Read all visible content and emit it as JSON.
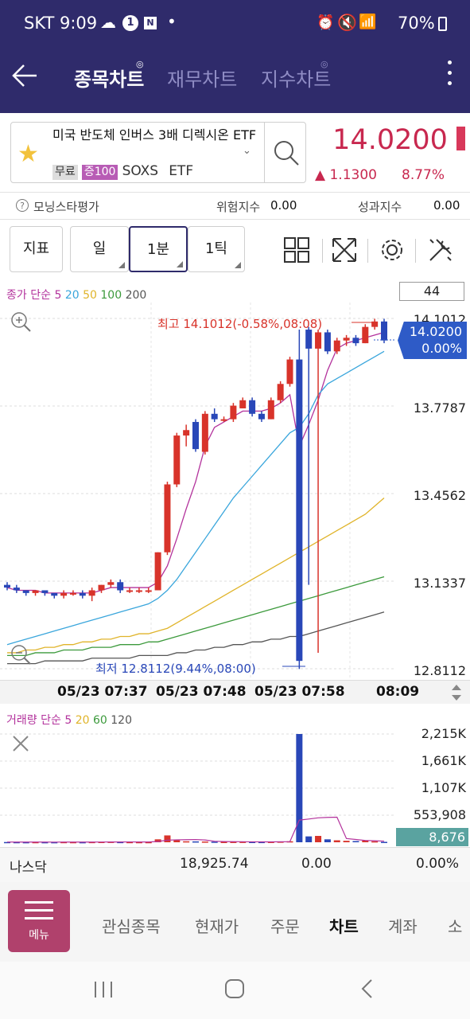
{
  "status": {
    "carrier_time": "SKT 9:09",
    "battery": "70%"
  },
  "tabs": [
    {
      "label": "종목차트"
    },
    {
      "label": "재무차트"
    },
    {
      "label": "지수차트"
    }
  ],
  "stock": {
    "name": "미국 반도체 인버스 3배 디렉시온 ETF",
    "tag_free": "무료",
    "tag_margin": "증100",
    "ticker": "SOXS",
    "type": "ETF",
    "price": "14.0200",
    "change": "▲ 1.1300",
    "change_pct": "8.77%"
  },
  "info_row": {
    "morningstar": "모닝스타평가",
    "risk_label": "위험지수",
    "risk_value": "0.00",
    "perf_label": "성과지수",
    "perf_value": "0.00"
  },
  "toolbar": {
    "indicator": "지표",
    "day": "일",
    "min1": "1분",
    "tick1": "1틱",
    "count": "44"
  },
  "legend": {
    "price_prefix": "종가 단순",
    "ma": [
      "5",
      "20",
      "50",
      "100",
      "200"
    ],
    "volume_prefix": "거래량 단순",
    "vol_ma": [
      "5",
      "20",
      "60",
      "120"
    ]
  },
  "colors": {
    "up": "#d8332a",
    "down": "#2947b8",
    "brand": "#2f2b6b",
    "price": "#c8284f",
    "ma5": "#b3329c",
    "ma20": "#3aa6dc",
    "ma50": "#e0b42a",
    "ma100": "#3c9a3c",
    "ma200": "#555555",
    "vol_badge": "#5aa3a0"
  },
  "chart_data": [
    {
      "type": "candlestick",
      "title": "",
      "x_labels": [
        "05/23 07:37",
        "05/23 07:48",
        "05/23 07:58",
        "08:09"
      ],
      "y_ticks": [
        "14.1012",
        "13.7787",
        "13.4562",
        "13.1337",
        "12.8112"
      ],
      "ylim": [
        12.8112,
        14.1012
      ],
      "current_price": "14.0200",
      "current_pct": "0.00%",
      "high_annotation": "최고 14.1012(-0.58%,08:08)",
      "low_annotation": "최저 12.8112(9.44%,08:00)",
      "candles": [
        {
          "o": 13.12,
          "h": 13.13,
          "l": 13.1,
          "c": 13.11
        },
        {
          "o": 13.11,
          "h": 13.12,
          "l": 13.09,
          "c": 13.1
        },
        {
          "o": 13.1,
          "h": 13.1,
          "l": 13.08,
          "c": 13.09
        },
        {
          "o": 13.09,
          "h": 13.1,
          "l": 13.08,
          "c": 13.1
        },
        {
          "o": 13.1,
          "h": 13.1,
          "l": 13.08,
          "c": 13.09
        },
        {
          "o": 13.09,
          "h": 13.09,
          "l": 13.07,
          "c": 13.08
        },
        {
          "o": 13.08,
          "h": 13.1,
          "l": 13.07,
          "c": 13.09
        },
        {
          "o": 13.09,
          "h": 13.1,
          "l": 13.08,
          "c": 13.09
        },
        {
          "o": 13.09,
          "h": 13.1,
          "l": 13.07,
          "c": 13.08
        },
        {
          "o": 13.08,
          "h": 13.11,
          "l": 13.06,
          "c": 13.1
        },
        {
          "o": 13.1,
          "h": 13.12,
          "l": 13.09,
          "c": 13.12
        },
        {
          "o": 13.12,
          "h": 13.14,
          "l": 13.11,
          "c": 13.13
        },
        {
          "o": 13.13,
          "h": 13.14,
          "l": 13.09,
          "c": 13.1
        },
        {
          "o": 13.1,
          "h": 13.11,
          "l": 13.09,
          "c": 13.1
        },
        {
          "o": 13.1,
          "h": 13.11,
          "l": 13.09,
          "c": 13.1
        },
        {
          "o": 13.1,
          "h": 13.11,
          "l": 13.09,
          "c": 13.1
        },
        {
          "o": 13.1,
          "h": 13.24,
          "l": 13.1,
          "c": 13.24
        },
        {
          "o": 13.24,
          "h": 13.5,
          "l": 13.23,
          "c": 13.49
        },
        {
          "o": 13.49,
          "h": 13.68,
          "l": 13.48,
          "c": 13.67
        },
        {
          "o": 13.67,
          "h": 13.71,
          "l": 13.63,
          "c": 13.69
        },
        {
          "o": 13.72,
          "h": 13.73,
          "l": 13.61,
          "c": 13.62
        },
        {
          "o": 13.61,
          "h": 13.76,
          "l": 13.6,
          "c": 13.75
        },
        {
          "o": 13.75,
          "h": 13.77,
          "l": 13.72,
          "c": 13.73
        },
        {
          "o": 13.73,
          "h": 13.74,
          "l": 13.72,
          "c": 13.73
        },
        {
          "o": 13.73,
          "h": 13.79,
          "l": 13.72,
          "c": 13.78
        },
        {
          "o": 13.77,
          "h": 13.81,
          "l": 13.77,
          "c": 13.8
        },
        {
          "o": 13.8,
          "h": 13.81,
          "l": 13.74,
          "c": 13.75
        },
        {
          "o": 13.75,
          "h": 13.76,
          "l": 13.72,
          "c": 13.73
        },
        {
          "o": 13.73,
          "h": 13.81,
          "l": 13.73,
          "c": 13.8
        },
        {
          "o": 13.8,
          "h": 13.87,
          "l": 13.79,
          "c": 13.86
        },
        {
          "o": 13.86,
          "h": 13.96,
          "l": 13.85,
          "c": 13.95
        },
        {
          "o": 13.95,
          "h": 14.06,
          "l": 12.81,
          "c": 12.84
        },
        {
          "o": 14.06,
          "h": 14.07,
          "l": 13.12,
          "c": 13.99
        },
        {
          "o": 13.99,
          "h": 14.06,
          "l": 12.87,
          "c": 14.05
        },
        {
          "o": 14.05,
          "h": 14.06,
          "l": 13.97,
          "c": 13.98
        },
        {
          "o": 13.98,
          "h": 14.03,
          "l": 13.97,
          "c": 14.02
        },
        {
          "o": 14.02,
          "h": 14.04,
          "l": 14.0,
          "c": 14.03
        },
        {
          "o": 14.03,
          "h": 14.04,
          "l": 14.0,
          "c": 14.01
        },
        {
          "o": 14.01,
          "h": 14.08,
          "l": 14.01,
          "c": 14.07
        },
        {
          "o": 14.07,
          "h": 14.1,
          "l": 14.06,
          "c": 14.09
        },
        {
          "o": 14.09,
          "h": 14.1,
          "l": 14.01,
          "c": 14.02
        }
      ],
      "ma_series": [
        {
          "name": "5",
          "values": [
            13.11,
            13.1,
            13.1,
            13.1,
            13.09,
            13.09,
            13.09,
            13.09,
            13.09,
            13.09,
            13.1,
            13.11,
            13.11,
            13.11,
            13.11,
            13.11,
            13.13,
            13.19,
            13.29,
            13.4,
            13.5,
            13.63,
            13.7,
            13.72,
            13.74,
            13.76,
            13.76,
            13.76,
            13.77,
            13.79,
            13.82,
            13.63,
            13.71,
            13.8,
            13.91,
            13.99,
            14.01,
            14.02,
            14.03,
            14.04,
            14.05
          ]
        },
        {
          "name": "20",
          "values": [
            12.9,
            12.91,
            12.92,
            12.93,
            12.94,
            12.95,
            12.96,
            12.97,
            12.98,
            12.99,
            13.0,
            13.01,
            13.02,
            13.03,
            13.04,
            13.05,
            13.07,
            13.1,
            13.14,
            13.19,
            13.24,
            13.29,
            13.34,
            13.39,
            13.44,
            13.48,
            13.52,
            13.56,
            13.6,
            13.64,
            13.68,
            13.7,
            13.75,
            13.82,
            13.86,
            13.88,
            13.9,
            13.92,
            13.94,
            13.96,
            13.98
          ]
        },
        {
          "name": "50",
          "values": [
            12.87,
            12.87,
            12.88,
            12.88,
            12.89,
            12.89,
            12.9,
            12.9,
            12.91,
            12.91,
            12.92,
            12.92,
            12.93,
            12.93,
            12.94,
            12.94,
            12.95,
            12.96,
            12.98,
            13.0,
            13.02,
            13.04,
            13.06,
            13.08,
            13.1,
            13.12,
            13.14,
            13.16,
            13.18,
            13.2,
            13.22,
            13.24,
            13.26,
            13.28,
            13.3,
            13.32,
            13.34,
            13.36,
            13.38,
            13.41,
            13.44
          ]
        },
        {
          "name": "100",
          "values": [
            12.86,
            12.86,
            12.86,
            12.87,
            12.87,
            12.87,
            12.88,
            12.88,
            12.88,
            12.89,
            12.89,
            12.89,
            12.9,
            12.9,
            12.9,
            12.91,
            12.91,
            12.92,
            12.93,
            12.94,
            12.95,
            12.96,
            12.97,
            12.98,
            12.99,
            13.0,
            13.01,
            13.02,
            13.03,
            13.04,
            13.05,
            13.06,
            13.07,
            13.08,
            13.09,
            13.1,
            13.11,
            13.12,
            13.13,
            13.14,
            13.15
          ]
        },
        {
          "name": "200",
          "values": [
            12.83,
            12.83,
            12.83,
            12.83,
            12.84,
            12.84,
            12.84,
            12.84,
            12.84,
            12.85,
            12.85,
            12.85,
            12.85,
            12.85,
            12.86,
            12.86,
            12.86,
            12.86,
            12.87,
            12.87,
            12.88,
            12.88,
            12.89,
            12.89,
            12.9,
            12.9,
            12.91,
            12.91,
            12.92,
            12.92,
            12.93,
            12.93,
            12.94,
            12.95,
            12.96,
            12.97,
            12.98,
            12.99,
            13.0,
            13.01,
            13.02
          ]
        }
      ]
    },
    {
      "type": "bar",
      "title": "",
      "y_ticks": [
        "2,215K",
        "1,661K",
        "1,107K",
        "553,908"
      ],
      "ylim": [
        0,
        2215000
      ],
      "current_volume": "8,676",
      "values": [
        5000,
        4000,
        3000,
        4000,
        3000,
        3000,
        5000,
        4000,
        3000,
        6000,
        8000,
        10000,
        6000,
        5000,
        4000,
        4000,
        60000,
        140000,
        40000,
        20000,
        18000,
        15000,
        12000,
        8000,
        9000,
        10000,
        8000,
        7000,
        9000,
        14000,
        20000,
        2215000,
        120000,
        130000,
        60000,
        40000,
        30000,
        25000,
        35000,
        20000,
        8676
      ]
    }
  ],
  "market": {
    "name": "나스닥",
    "index": "18,925.74",
    "change": "0.00",
    "pct": "0.00%"
  },
  "bottom_nav": {
    "menu": "메뉴",
    "items": [
      "관심종목",
      "현재가",
      "주문",
      "차트",
      "계좌",
      "소"
    ]
  }
}
